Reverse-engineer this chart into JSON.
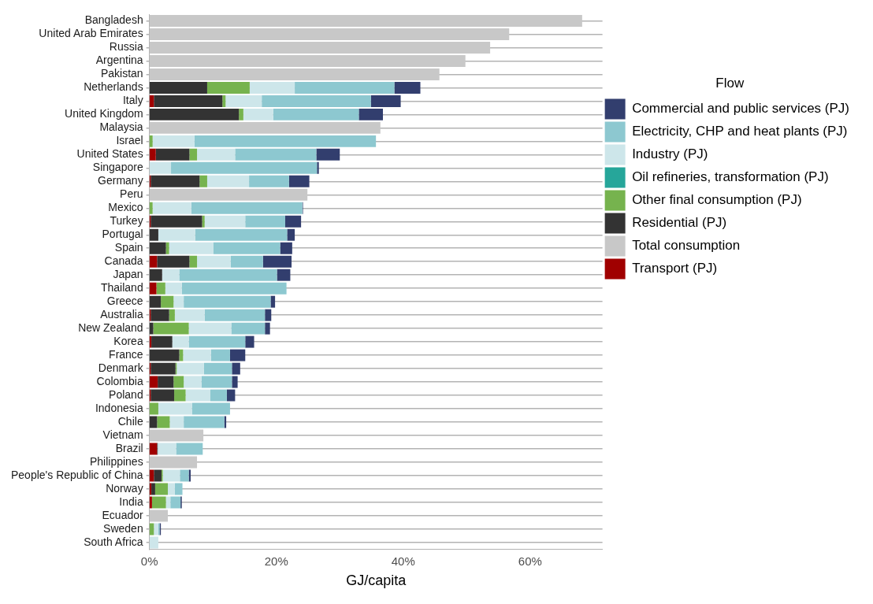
{
  "chart_data": {
    "type": "bar",
    "orientation": "horizontal",
    "stacked": true,
    "xlabel": "GJ/capita",
    "legend_title": "Flow",
    "legend": "right",
    "grid": "y",
    "categories": [
      "Bangladesh",
      "United Arab Emirates",
      "Russia",
      "Argentina",
      "Pakistan",
      "Netherlands",
      "Italy",
      "United Kingdom",
      "Malaysia",
      "Israel",
      "United States",
      "Singapore",
      "Germany",
      "Peru",
      "Mexico",
      "Turkey",
      "Portugal",
      "Spain",
      "Canada",
      "Japan",
      "Thailand",
      "Greece",
      "Australia",
      "New Zealand",
      "Korea",
      "France",
      "Denmark",
      "Colombia",
      "Poland",
      "Indonesia",
      "Chile",
      "Vietnam",
      "Brazil",
      "Philippines",
      "People's Republic of China",
      "Norway",
      "India",
      "Ecuador",
      "Sweden",
      "South Africa"
    ],
    "xlim": [
      0,
      71.4
    ],
    "xticks": [
      {
        "value": 0,
        "label": "0%"
      },
      {
        "value": 20,
        "label": "20%"
      },
      {
        "value": 40,
        "label": "40%"
      },
      {
        "value": 60,
        "label": "60%"
      }
    ],
    "series": [
      {
        "name": "Transport (PJ)",
        "color": "#a00000",
        "values": [
          null,
          null,
          null,
          null,
          null,
          null,
          0.7,
          null,
          null,
          null,
          1.0,
          null,
          0.2,
          null,
          null,
          0.2,
          null,
          null,
          1.2,
          null,
          1.1,
          null,
          0.2,
          null,
          0.3,
          null,
          0.2,
          1.3,
          0.2,
          null,
          null,
          null,
          1.2,
          null,
          0.7,
          0.3,
          0.4,
          null,
          null,
          null
        ]
      },
      {
        "name": "Residential (PJ)",
        "color": "#333333",
        "values": [
          null,
          null,
          null,
          null,
          null,
          9.1,
          10.8,
          14.1,
          null,
          null,
          5.3,
          null,
          7.7,
          null,
          null,
          8.1,
          1.4,
          2.6,
          5.1,
          2.0,
          null,
          1.8,
          2.9,
          0.6,
          3.3,
          4.7,
          3.9,
          2.5,
          3.7,
          null,
          1.2,
          null,
          0.1,
          null,
          1.2,
          0.6,
          null,
          null,
          null,
          null
        ]
      },
      {
        "name": "Other final consumption (PJ)",
        "color": "#76b34e",
        "values": [
          null,
          null,
          null,
          null,
          null,
          6.7,
          0.5,
          0.7,
          null,
          0.5,
          1.2,
          null,
          1.2,
          null,
          0.5,
          0.4,
          null,
          0.5,
          1.2,
          null,
          1.4,
          2.0,
          0.9,
          5.6,
          null,
          0.6,
          0.2,
          1.6,
          1.8,
          1.4,
          2.0,
          null,
          null,
          null,
          0.2,
          2.0,
          2.2,
          null,
          0.7,
          null
        ]
      },
      {
        "name": "Oil refineries, transformation (PJ)",
        "color": "#26a69a",
        "values": [
          null,
          null,
          null,
          null,
          null,
          null,
          null,
          null,
          null,
          null,
          null,
          null,
          null,
          null,
          null,
          null,
          null,
          null,
          null,
          null,
          null,
          null,
          null,
          null,
          null,
          null,
          null,
          null,
          null,
          null,
          null,
          null,
          null,
          null,
          null,
          null,
          null,
          null,
          null,
          null
        ]
      },
      {
        "name": "Industry (PJ)",
        "color": "#cde6ea",
        "values": [
          null,
          null,
          null,
          null,
          null,
          7.1,
          5.7,
          4.7,
          null,
          6.6,
          6.0,
          3.4,
          6.6,
          null,
          6.1,
          6.4,
          5.8,
          7.0,
          5.3,
          2.7,
          2.6,
          1.6,
          4.7,
          6.7,
          2.6,
          4.4,
          4.3,
          2.8,
          3.9,
          5.3,
          2.2,
          null,
          2.9,
          null,
          2.7,
          1.1,
          0.7,
          null,
          0.7,
          1.4
        ]
      },
      {
        "name": "Electricity, CHP and heat plants (PJ)",
        "color": "#8dc8d0",
        "values": [
          null,
          null,
          null,
          null,
          null,
          15.7,
          17.2,
          13.5,
          null,
          28.6,
          12.8,
          23.0,
          6.3,
          null,
          17.5,
          6.3,
          14.5,
          10.5,
          5.1,
          15.4,
          16.5,
          13.7,
          9.5,
          5.3,
          8.9,
          3.0,
          4.4,
          4.8,
          2.6,
          6.0,
          6.4,
          null,
          4.2,
          null,
          1.4,
          1.2,
          1.6,
          null,
          0.2,
          null
        ]
      },
      {
        "name": "Commercial and public services (PJ)",
        "color": "#323e6e",
        "values": [
          null,
          null,
          null,
          null,
          null,
          4.1,
          4.7,
          3.8,
          null,
          null,
          3.7,
          0.3,
          3.2,
          null,
          0.1,
          2.5,
          1.2,
          1.9,
          4.5,
          2.1,
          null,
          0.7,
          1.0,
          0.8,
          1.4,
          2.4,
          1.3,
          0.9,
          1.3,
          null,
          0.3,
          null,
          null,
          null,
          0.3,
          null,
          0.2,
          null,
          0.2,
          null
        ]
      },
      {
        "name": "Total consumption",
        "color": "#c8c8c8",
        "values": [
          68.2,
          56.7,
          53.7,
          49.8,
          45.7,
          null,
          null,
          null,
          36.4,
          null,
          null,
          null,
          null,
          24.9,
          null,
          null,
          null,
          null,
          null,
          null,
          null,
          null,
          null,
          null,
          null,
          null,
          null,
          null,
          null,
          null,
          null,
          8.5,
          null,
          7.5,
          null,
          null,
          null,
          2.9,
          null,
          null
        ]
      }
    ]
  }
}
